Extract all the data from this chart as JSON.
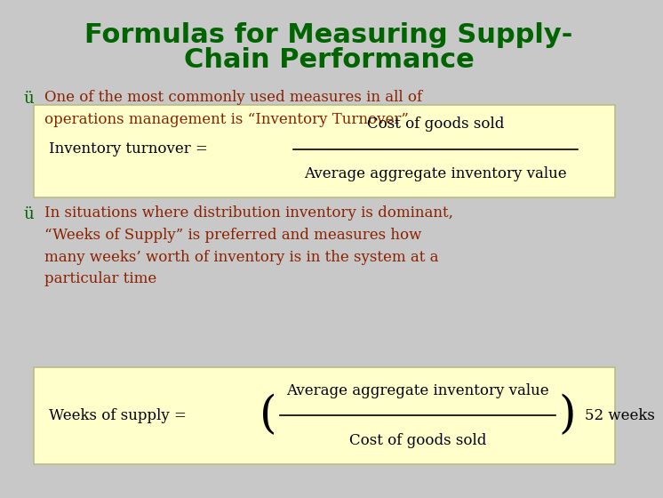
{
  "title_line1": "Formulas for Measuring Supply-",
  "title_line2": "Chain Performance",
  "title_color": "#006400",
  "bg_color": "#C8C8C8",
  "box_color": "#FFFFCC",
  "box_edge_color": "#BBBB88",
  "bullet_color": "#006400",
  "text_color": "#8B2000",
  "formula_color": "#000000",
  "bullet1": "One of the most commonly used measures in all of\noperations management is “Inventory Turnover”",
  "formula1_left": "Inventory turnover = ",
  "formula1_num": "Cost of goods sold",
  "formula1_den": "Average aggregate inventory value",
  "bullet2": "In situations where distribution inventory is dominant,\n“Weeks of Supply” is preferred and measures how\nmany weeks’ worth of inventory is in the system at a\nparticular time",
  "formula2_left": "Weeks of supply = ",
  "formula2_num": "Average aggregate inventory value",
  "formula2_den": "Cost of goods sold",
  "formula2_right": "52 weeks",
  "title_fontsize": 22,
  "body_fontsize": 12,
  "formula_fontsize": 12
}
